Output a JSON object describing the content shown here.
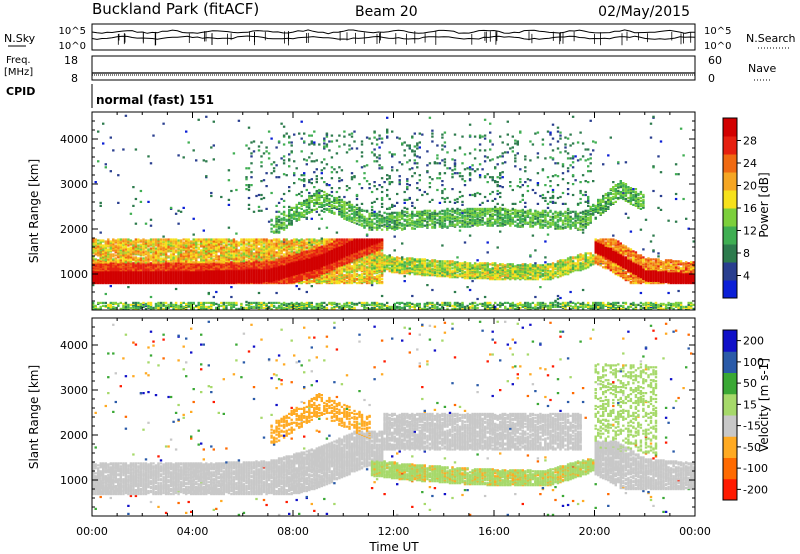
{
  "header": {
    "station": "Buckland Park (fitACF)",
    "beam": "Beam 20",
    "date": "02/May/2015"
  },
  "noise_panel": {
    "left_label": "N.Sky",
    "right_label": "N.Search",
    "tick_top": "10^5",
    "tick_bottom": "10^0"
  },
  "freq_panel": {
    "left_label_line1": "Freq.",
    "left_label_line2": "[MHz]",
    "left_tick_top": "18",
    "left_tick_bottom": "8",
    "right_label": "Nave",
    "right_tick_top": "60",
    "right_tick_bottom": "0"
  },
  "cpid_panel": {
    "label": "CPID",
    "mode_text": "normal (fast) 151"
  },
  "colors": {
    "power": [
      "#0b1fd6",
      "#2a3f8f",
      "#2d7b4d",
      "#3fae52",
      "#7ccf3c",
      "#f6e11c",
      "#f5a623",
      "#f06a12",
      "#e62010",
      "#d20000"
    ],
    "velocity": [
      "#ff1a00",
      "#ff6a00",
      "#ffaa22",
      "#c8c8c8",
      "#a6d96a",
      "#3aa835",
      "#2a5aa8",
      "#1010c8"
    ]
  },
  "chart_data": [
    {
      "type": "heatmap",
      "name": "power",
      "xlabel": "",
      "ylabel": "Slant Range [km]",
      "x_ticks": [
        "00:00",
        "04:00",
        "08:00",
        "12:00",
        "16:00",
        "20:00",
        "00:00"
      ],
      "y_ticks": [
        1000,
        2000,
        3000,
        4000
      ],
      "xlim": [
        0,
        24
      ],
      "ylim": [
        200,
        4600
      ],
      "colorbar": {
        "label": "Power [dB]",
        "ticks": [
          4,
          8,
          12,
          16,
          20,
          24,
          28
        ],
        "range": [
          0,
          32
        ]
      }
    },
    {
      "type": "heatmap",
      "name": "velocity",
      "xlabel": "Time UT",
      "ylabel": "Slant Range [km]",
      "x_ticks": [
        "00:00",
        "04:00",
        "08:00",
        "12:00",
        "16:00",
        "20:00",
        "00:00"
      ],
      "y_ticks": [
        1000,
        2000,
        3000,
        4000
      ],
      "xlim": [
        0,
        24
      ],
      "ylim": [
        200,
        4600
      ],
      "colorbar": {
        "label": "Velocity [m s-1]",
        "ticks": [
          200,
          100,
          50,
          15,
          -15,
          -50,
          -100,
          -200
        ]
      }
    }
  ]
}
